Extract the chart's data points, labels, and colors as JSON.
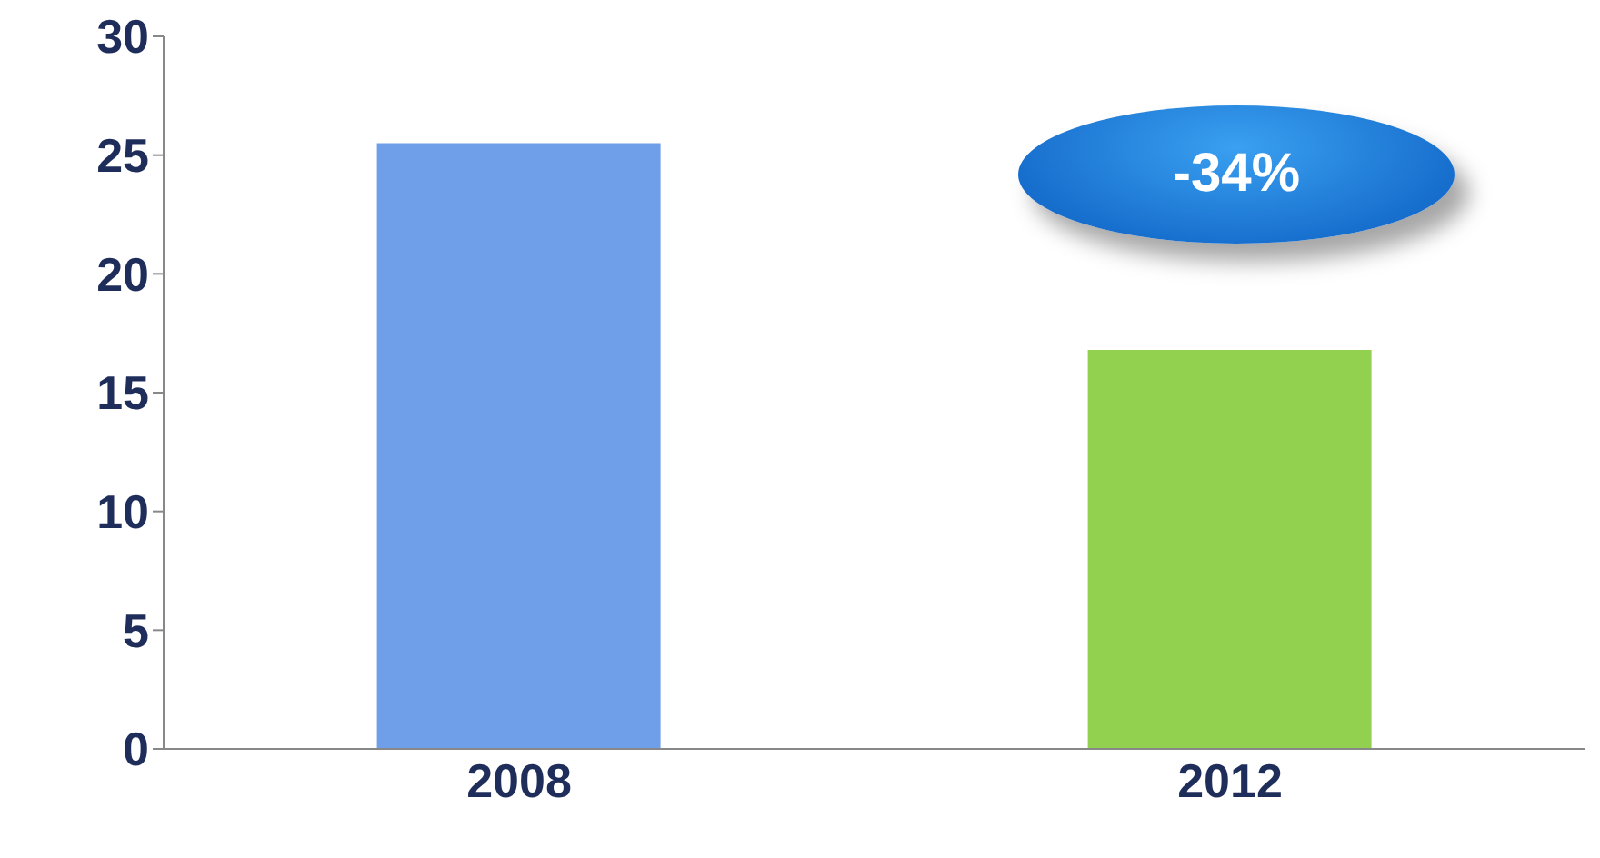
{
  "chart_data": {
    "type": "bar",
    "categories": [
      "2008",
      "2012"
    ],
    "values": [
      25.5,
      16.8
    ],
    "colors": [
      "#6f9fe8",
      "#92d050"
    ],
    "ylim": [
      0,
      30
    ],
    "yticks": [
      0,
      5,
      10,
      15,
      20,
      25,
      30
    ],
    "annotations": [
      "-34%"
    ]
  }
}
